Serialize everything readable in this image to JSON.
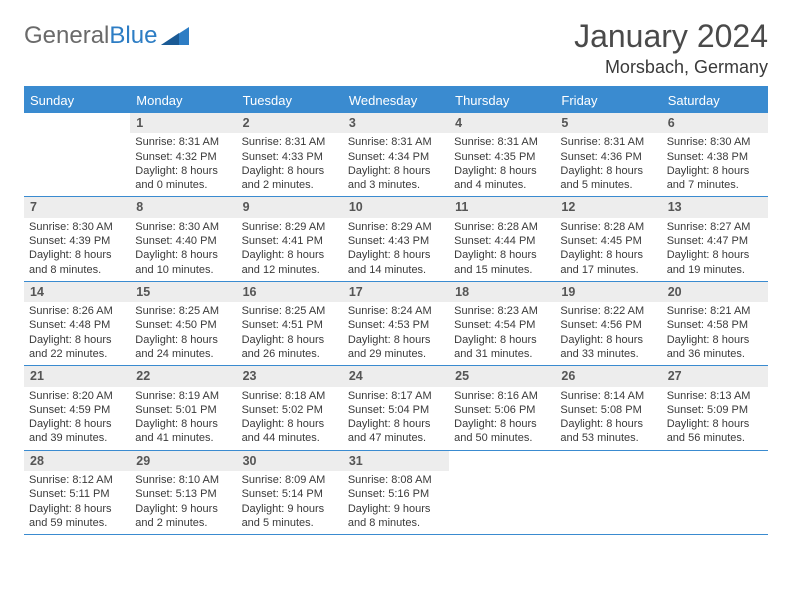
{
  "brand": {
    "name1": "General",
    "name2": "Blue"
  },
  "title": "January 2024",
  "location": "Morsbach, Germany",
  "colors": {
    "accent": "#3a8bd0",
    "header_text": "#ffffff",
    "daynum_bg": "#ededed",
    "text": "#3a3a3a",
    "brand_gray": "#6a6a6a",
    "brand_blue": "#2d7dc4"
  },
  "day_headers": [
    "Sunday",
    "Monday",
    "Tuesday",
    "Wednesday",
    "Thursday",
    "Friday",
    "Saturday"
  ],
  "weeks": [
    [
      {
        "day": "",
        "sunrise": "",
        "sunset": "",
        "daylight1": "",
        "daylight2": ""
      },
      {
        "day": "1",
        "sunrise": "Sunrise: 8:31 AM",
        "sunset": "Sunset: 4:32 PM",
        "daylight1": "Daylight: 8 hours",
        "daylight2": "and 0 minutes."
      },
      {
        "day": "2",
        "sunrise": "Sunrise: 8:31 AM",
        "sunset": "Sunset: 4:33 PM",
        "daylight1": "Daylight: 8 hours",
        "daylight2": "and 2 minutes."
      },
      {
        "day": "3",
        "sunrise": "Sunrise: 8:31 AM",
        "sunset": "Sunset: 4:34 PM",
        "daylight1": "Daylight: 8 hours",
        "daylight2": "and 3 minutes."
      },
      {
        "day": "4",
        "sunrise": "Sunrise: 8:31 AM",
        "sunset": "Sunset: 4:35 PM",
        "daylight1": "Daylight: 8 hours",
        "daylight2": "and 4 minutes."
      },
      {
        "day": "5",
        "sunrise": "Sunrise: 8:31 AM",
        "sunset": "Sunset: 4:36 PM",
        "daylight1": "Daylight: 8 hours",
        "daylight2": "and 5 minutes."
      },
      {
        "day": "6",
        "sunrise": "Sunrise: 8:30 AM",
        "sunset": "Sunset: 4:38 PM",
        "daylight1": "Daylight: 8 hours",
        "daylight2": "and 7 minutes."
      }
    ],
    [
      {
        "day": "7",
        "sunrise": "Sunrise: 8:30 AM",
        "sunset": "Sunset: 4:39 PM",
        "daylight1": "Daylight: 8 hours",
        "daylight2": "and 8 minutes."
      },
      {
        "day": "8",
        "sunrise": "Sunrise: 8:30 AM",
        "sunset": "Sunset: 4:40 PM",
        "daylight1": "Daylight: 8 hours",
        "daylight2": "and 10 minutes."
      },
      {
        "day": "9",
        "sunrise": "Sunrise: 8:29 AM",
        "sunset": "Sunset: 4:41 PM",
        "daylight1": "Daylight: 8 hours",
        "daylight2": "and 12 minutes."
      },
      {
        "day": "10",
        "sunrise": "Sunrise: 8:29 AM",
        "sunset": "Sunset: 4:43 PM",
        "daylight1": "Daylight: 8 hours",
        "daylight2": "and 14 minutes."
      },
      {
        "day": "11",
        "sunrise": "Sunrise: 8:28 AM",
        "sunset": "Sunset: 4:44 PM",
        "daylight1": "Daylight: 8 hours",
        "daylight2": "and 15 minutes."
      },
      {
        "day": "12",
        "sunrise": "Sunrise: 8:28 AM",
        "sunset": "Sunset: 4:45 PM",
        "daylight1": "Daylight: 8 hours",
        "daylight2": "and 17 minutes."
      },
      {
        "day": "13",
        "sunrise": "Sunrise: 8:27 AM",
        "sunset": "Sunset: 4:47 PM",
        "daylight1": "Daylight: 8 hours",
        "daylight2": "and 19 minutes."
      }
    ],
    [
      {
        "day": "14",
        "sunrise": "Sunrise: 8:26 AM",
        "sunset": "Sunset: 4:48 PM",
        "daylight1": "Daylight: 8 hours",
        "daylight2": "and 22 minutes."
      },
      {
        "day": "15",
        "sunrise": "Sunrise: 8:25 AM",
        "sunset": "Sunset: 4:50 PM",
        "daylight1": "Daylight: 8 hours",
        "daylight2": "and 24 minutes."
      },
      {
        "day": "16",
        "sunrise": "Sunrise: 8:25 AM",
        "sunset": "Sunset: 4:51 PM",
        "daylight1": "Daylight: 8 hours",
        "daylight2": "and 26 minutes."
      },
      {
        "day": "17",
        "sunrise": "Sunrise: 8:24 AM",
        "sunset": "Sunset: 4:53 PM",
        "daylight1": "Daylight: 8 hours",
        "daylight2": "and 29 minutes."
      },
      {
        "day": "18",
        "sunrise": "Sunrise: 8:23 AM",
        "sunset": "Sunset: 4:54 PM",
        "daylight1": "Daylight: 8 hours",
        "daylight2": "and 31 minutes."
      },
      {
        "day": "19",
        "sunrise": "Sunrise: 8:22 AM",
        "sunset": "Sunset: 4:56 PM",
        "daylight1": "Daylight: 8 hours",
        "daylight2": "and 33 minutes."
      },
      {
        "day": "20",
        "sunrise": "Sunrise: 8:21 AM",
        "sunset": "Sunset: 4:58 PM",
        "daylight1": "Daylight: 8 hours",
        "daylight2": "and 36 minutes."
      }
    ],
    [
      {
        "day": "21",
        "sunrise": "Sunrise: 8:20 AM",
        "sunset": "Sunset: 4:59 PM",
        "daylight1": "Daylight: 8 hours",
        "daylight2": "and 39 minutes."
      },
      {
        "day": "22",
        "sunrise": "Sunrise: 8:19 AM",
        "sunset": "Sunset: 5:01 PM",
        "daylight1": "Daylight: 8 hours",
        "daylight2": "and 41 minutes."
      },
      {
        "day": "23",
        "sunrise": "Sunrise: 8:18 AM",
        "sunset": "Sunset: 5:02 PM",
        "daylight1": "Daylight: 8 hours",
        "daylight2": "and 44 minutes."
      },
      {
        "day": "24",
        "sunrise": "Sunrise: 8:17 AM",
        "sunset": "Sunset: 5:04 PM",
        "daylight1": "Daylight: 8 hours",
        "daylight2": "and 47 minutes."
      },
      {
        "day": "25",
        "sunrise": "Sunrise: 8:16 AM",
        "sunset": "Sunset: 5:06 PM",
        "daylight1": "Daylight: 8 hours",
        "daylight2": "and 50 minutes."
      },
      {
        "day": "26",
        "sunrise": "Sunrise: 8:14 AM",
        "sunset": "Sunset: 5:08 PM",
        "daylight1": "Daylight: 8 hours",
        "daylight2": "and 53 minutes."
      },
      {
        "day": "27",
        "sunrise": "Sunrise: 8:13 AM",
        "sunset": "Sunset: 5:09 PM",
        "daylight1": "Daylight: 8 hours",
        "daylight2": "and 56 minutes."
      }
    ],
    [
      {
        "day": "28",
        "sunrise": "Sunrise: 8:12 AM",
        "sunset": "Sunset: 5:11 PM",
        "daylight1": "Daylight: 8 hours",
        "daylight2": "and 59 minutes."
      },
      {
        "day": "29",
        "sunrise": "Sunrise: 8:10 AM",
        "sunset": "Sunset: 5:13 PM",
        "daylight1": "Daylight: 9 hours",
        "daylight2": "and 2 minutes."
      },
      {
        "day": "30",
        "sunrise": "Sunrise: 8:09 AM",
        "sunset": "Sunset: 5:14 PM",
        "daylight1": "Daylight: 9 hours",
        "daylight2": "and 5 minutes."
      },
      {
        "day": "31",
        "sunrise": "Sunrise: 8:08 AM",
        "sunset": "Sunset: 5:16 PM",
        "daylight1": "Daylight: 9 hours",
        "daylight2": "and 8 minutes."
      },
      {
        "day": "",
        "sunrise": "",
        "sunset": "",
        "daylight1": "",
        "daylight2": ""
      },
      {
        "day": "",
        "sunrise": "",
        "sunset": "",
        "daylight1": "",
        "daylight2": ""
      },
      {
        "day": "",
        "sunrise": "",
        "sunset": "",
        "daylight1": "",
        "daylight2": ""
      }
    ]
  ]
}
